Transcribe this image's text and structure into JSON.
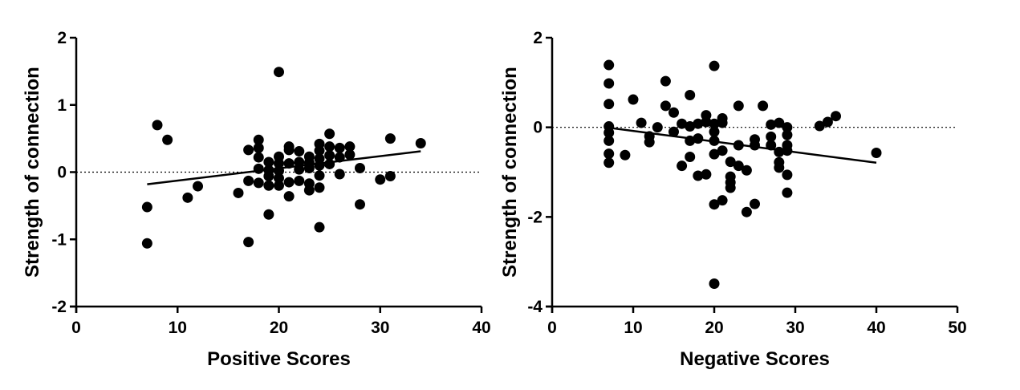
{
  "chart_data": [
    {
      "type": "scatter",
      "title": "",
      "xlabel": "Positive Scores",
      "ylabel": "Strength of connection",
      "xlim": [
        0,
        40
      ],
      "ylim": [
        -2,
        2
      ],
      "xticks": [
        "0",
        "10",
        "20",
        "30",
        "40"
      ],
      "yticks": [
        "-2",
        "-1",
        "0",
        "1",
        "2"
      ],
      "reference_line_y": 0,
      "trendline": {
        "x": [
          7,
          34
        ],
        "y": [
          -0.18,
          0.31
        ]
      },
      "grid": false,
      "legend": "none",
      "marker_color": "#000000",
      "series": [
        {
          "points": [
            {
              "x": 7,
              "y": -0.52
            },
            {
              "x": 7,
              "y": -1.06
            },
            {
              "x": 8,
              "y": 0.7
            },
            {
              "x": 9,
              "y": 0.48
            },
            {
              "x": 11,
              "y": -0.38
            },
            {
              "x": 12,
              "y": -0.21
            },
            {
              "x": 16,
              "y": -0.31
            },
            {
              "x": 17,
              "y": 0.33
            },
            {
              "x": 17,
              "y": -0.13
            },
            {
              "x": 17,
              "y": -1.04
            },
            {
              "x": 18,
              "y": 0.48
            },
            {
              "x": 18,
              "y": 0.36
            },
            {
              "x": 18,
              "y": 0.22
            },
            {
              "x": 18,
              "y": 0.05
            },
            {
              "x": 18,
              "y": -0.16
            },
            {
              "x": 19,
              "y": 0.15
            },
            {
              "x": 19,
              "y": 0.03
            },
            {
              "x": 19,
              "y": -0.06
            },
            {
              "x": 19,
              "y": -0.2
            },
            {
              "x": 19,
              "y": -0.63
            },
            {
              "x": 20,
              "y": 1.49
            },
            {
              "x": 20,
              "y": 0.23
            },
            {
              "x": 20,
              "y": 0.13
            },
            {
              "x": 20,
              "y": 0.02
            },
            {
              "x": 20,
              "y": -0.09
            },
            {
              "x": 20,
              "y": -0.2
            },
            {
              "x": 21,
              "y": 0.38
            },
            {
              "x": 21,
              "y": 0.33
            },
            {
              "x": 21,
              "y": 0.13
            },
            {
              "x": 21,
              "y": -0.15
            },
            {
              "x": 21,
              "y": -0.36
            },
            {
              "x": 22,
              "y": 0.31
            },
            {
              "x": 22,
              "y": 0.15
            },
            {
              "x": 22,
              "y": 0.04
            },
            {
              "x": 22,
              "y": -0.13
            },
            {
              "x": 23,
              "y": 0.23
            },
            {
              "x": 23,
              "y": 0.14
            },
            {
              "x": 23,
              "y": 0.06
            },
            {
              "x": 23,
              "y": -0.17
            },
            {
              "x": 23,
              "y": -0.27
            },
            {
              "x": 24,
              "y": 0.42
            },
            {
              "x": 24,
              "y": 0.32
            },
            {
              "x": 24,
              "y": 0.2
            },
            {
              "x": 24,
              "y": 0.1
            },
            {
              "x": 24,
              "y": -0.05
            },
            {
              "x": 24,
              "y": -0.23
            },
            {
              "x": 24,
              "y": -0.82
            },
            {
              "x": 25,
              "y": 0.57
            },
            {
              "x": 25,
              "y": 0.38
            },
            {
              "x": 25,
              "y": 0.25
            },
            {
              "x": 25,
              "y": 0.12
            },
            {
              "x": 26,
              "y": 0.36
            },
            {
              "x": 26,
              "y": 0.22
            },
            {
              "x": 26,
              "y": -0.03
            },
            {
              "x": 27,
              "y": 0.38
            },
            {
              "x": 27,
              "y": 0.26
            },
            {
              "x": 28,
              "y": 0.06
            },
            {
              "x": 28,
              "y": -0.48
            },
            {
              "x": 30,
              "y": -0.11
            },
            {
              "x": 31,
              "y": 0.5
            },
            {
              "x": 31,
              "y": -0.06
            },
            {
              "x": 34,
              "y": 0.43
            }
          ]
        }
      ]
    },
    {
      "type": "scatter",
      "title": "",
      "xlabel": "Negative Scores",
      "ylabel": "Strength of connection",
      "xlim": [
        0,
        50
      ],
      "ylim": [
        -4,
        2
      ],
      "xticks": [
        "0",
        "10",
        "20",
        "30",
        "40",
        "50"
      ],
      "yticks": [
        "-4",
        "-2",
        "0",
        "2"
      ],
      "reference_line_y": 0,
      "trendline": {
        "x": [
          7,
          40
        ],
        "y": [
          -0.01,
          -0.79
        ]
      },
      "grid": false,
      "legend": "none",
      "marker_color": "#000000",
      "series": [
        {
          "points": [
            {
              "x": 7,
              "y": 1.39
            },
            {
              "x": 7,
              "y": 0.98
            },
            {
              "x": 7,
              "y": 0.52
            },
            {
              "x": 7,
              "y": 0.02
            },
            {
              "x": 7,
              "y": -0.12
            },
            {
              "x": 7,
              "y": -0.3
            },
            {
              "x": 7,
              "y": -0.59
            },
            {
              "x": 7,
              "y": -0.79
            },
            {
              "x": 9,
              "y": -0.62
            },
            {
              "x": 10,
              "y": 0.62
            },
            {
              "x": 11,
              "y": 0.1
            },
            {
              "x": 12,
              "y": -0.2
            },
            {
              "x": 12,
              "y": -0.33
            },
            {
              "x": 13,
              "y": 0.0
            },
            {
              "x": 14,
              "y": 1.03
            },
            {
              "x": 14,
              "y": 0.48
            },
            {
              "x": 15,
              "y": 0.33
            },
            {
              "x": 15,
              "y": -0.1
            },
            {
              "x": 16,
              "y": 0.08
            },
            {
              "x": 16,
              "y": -0.86
            },
            {
              "x": 17,
              "y": 0.72
            },
            {
              "x": 17,
              "y": 0.02
            },
            {
              "x": 17,
              "y": -0.3
            },
            {
              "x": 17,
              "y": -0.66
            },
            {
              "x": 18,
              "y": 0.08
            },
            {
              "x": 18,
              "y": -0.25
            },
            {
              "x": 18,
              "y": -1.08
            },
            {
              "x": 19,
              "y": 0.27
            },
            {
              "x": 19,
              "y": 0.12
            },
            {
              "x": 19,
              "y": -1.05
            },
            {
              "x": 20,
              "y": 1.37
            },
            {
              "x": 20,
              "y": 0.08
            },
            {
              "x": 20,
              "y": -0.1
            },
            {
              "x": 20,
              "y": -0.3
            },
            {
              "x": 20,
              "y": -0.6
            },
            {
              "x": 20,
              "y": -1.72
            },
            {
              "x": 20,
              "y": -3.49
            },
            {
              "x": 21,
              "y": 0.2
            },
            {
              "x": 21,
              "y": 0.1
            },
            {
              "x": 21,
              "y": -0.52
            },
            {
              "x": 21,
              "y": -1.63
            },
            {
              "x": 22,
              "y": -0.77
            },
            {
              "x": 22,
              "y": -1.1
            },
            {
              "x": 22,
              "y": -1.23
            },
            {
              "x": 22,
              "y": -1.35
            },
            {
              "x": 23,
              "y": 0.48
            },
            {
              "x": 23,
              "y": -0.4
            },
            {
              "x": 23,
              "y": -0.86
            },
            {
              "x": 24,
              "y": -0.96
            },
            {
              "x": 24,
              "y": -1.89
            },
            {
              "x": 25,
              "y": -0.27
            },
            {
              "x": 25,
              "y": -0.4
            },
            {
              "x": 25,
              "y": -1.71
            },
            {
              "x": 26,
              "y": 0.48
            },
            {
              "x": 27,
              "y": 0.06
            },
            {
              "x": 27,
              "y": -0.21
            },
            {
              "x": 27,
              "y": -0.4
            },
            {
              "x": 28,
              "y": 0.1
            },
            {
              "x": 28,
              "y": -0.55
            },
            {
              "x": 28,
              "y": -0.78
            },
            {
              "x": 28,
              "y": -0.9
            },
            {
              "x": 29,
              "y": 0.0
            },
            {
              "x": 29,
              "y": -0.17
            },
            {
              "x": 29,
              "y": -0.4
            },
            {
              "x": 29,
              "y": -0.52
            },
            {
              "x": 29,
              "y": -1.06
            },
            {
              "x": 29,
              "y": -1.46
            },
            {
              "x": 33,
              "y": 0.03
            },
            {
              "x": 34,
              "y": 0.12
            },
            {
              "x": 35,
              "y": 0.25
            },
            {
              "x": 40,
              "y": -0.57
            }
          ]
        }
      ]
    }
  ]
}
